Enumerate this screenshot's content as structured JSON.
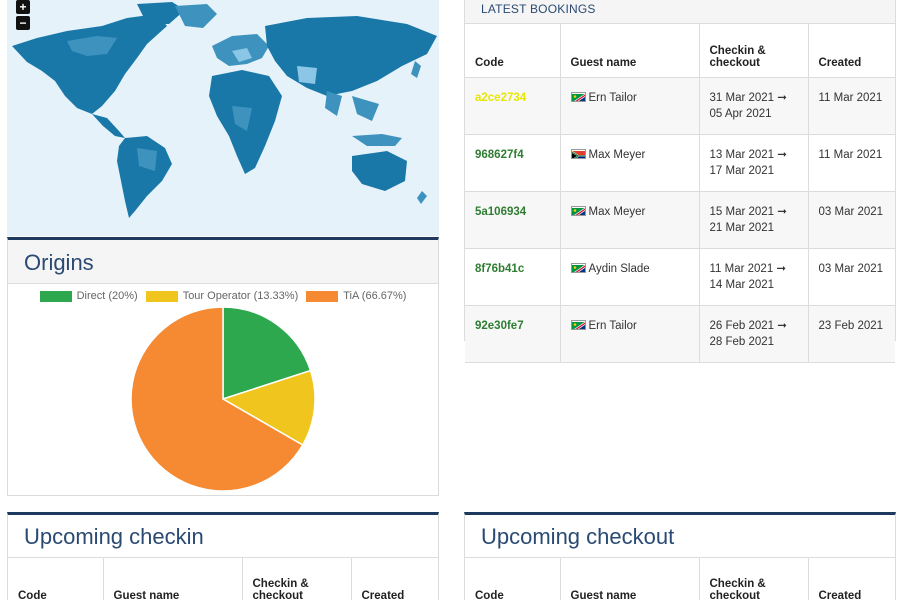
{
  "map": {
    "zoom_in": "+",
    "zoom_out": "−"
  },
  "origins": {
    "title": "Origins",
    "chart_data": {
      "type": "pie",
      "labels": [
        "Direct (20%)",
        "Tour Operator (13.33%)",
        "TiA (66.67%)"
      ],
      "values": [
        20,
        13.33,
        66.67
      ],
      "colors": [
        "#2ea84f",
        "#f0c61e",
        "#f58a32"
      ]
    }
  },
  "bookings": {
    "title": "LATEST BOOKINGS",
    "headers": [
      "Code",
      "Guest name",
      "Checkin & checkout",
      "Created"
    ],
    "rows": [
      {
        "code": "a2ce2734",
        "guest": "Ern Tailor",
        "dates": "31 Mar 2021 ➞ 05 Apr 2021",
        "created": "11 Mar 2021",
        "flag": "namibia"
      },
      {
        "code": "968627f4",
        "guest": "Max Meyer",
        "dates": "13 Mar 2021 ➞ 17 Mar 2021",
        "created": "11 Mar 2021",
        "flag": "south-africa"
      },
      {
        "code": "5a106934",
        "guest": "Max Meyer",
        "dates": "15 Mar 2021 ➞ 21 Mar 2021",
        "created": "03 Mar 2021",
        "flag": "namibia"
      },
      {
        "code": "8f76b41c",
        "guest": "Aydin Slade",
        "dates": "11 Mar 2021 ➞ 14 Mar 2021",
        "created": "03 Mar 2021",
        "flag": "namibia"
      },
      {
        "code": "92e30fe7",
        "guest": "Ern Tailor",
        "dates": "26 Feb 2021 ➞ 28 Feb 2021",
        "created": "23 Feb 2021",
        "flag": "namibia"
      }
    ]
  },
  "checkin": {
    "title": "Upcoming checkin",
    "headers": [
      "Code",
      "Guest name",
      "Checkin & checkout",
      "Created"
    ]
  },
  "checkout": {
    "title": "Upcoming checkout",
    "headers": [
      "Code",
      "Guest name",
      "Checkin & checkout",
      "Created"
    ]
  }
}
